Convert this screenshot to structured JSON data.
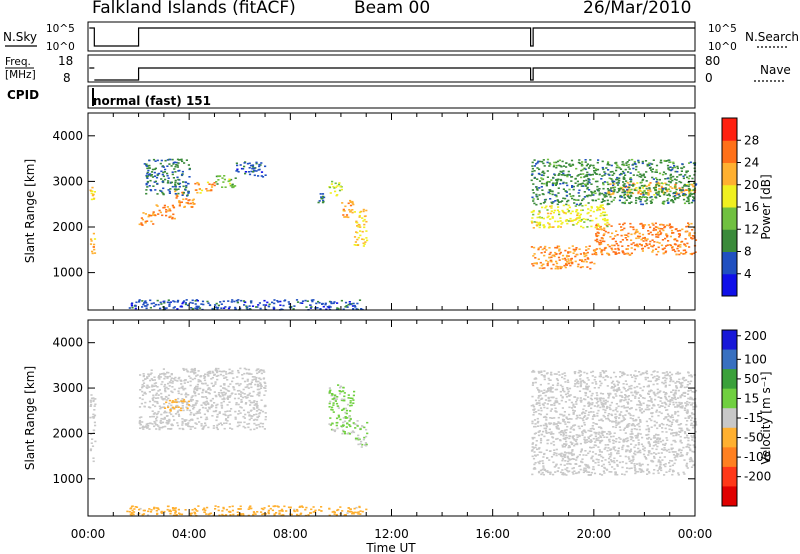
{
  "header": {
    "station": "Falkland Islands (fitACF)",
    "beam": "Beam 00",
    "date": "26/Mar/2010"
  },
  "top_panels": {
    "nsky_label": "N.Sky",
    "nsky_ticks": [
      "10^5",
      "10^0"
    ],
    "nsearch_label": "N.Search",
    "nsearch_ticks": [
      "10^5",
      "10^0"
    ],
    "freq_label_1": "Freq.",
    "freq_label_2": "[MHz]",
    "freq_ticks": [
      "18",
      "8"
    ],
    "nave_label": "Nave",
    "nave_ticks": [
      "80",
      "0"
    ],
    "cpid_label": "CPID",
    "cpid_value": "normal (fast) 151"
  },
  "axes": {
    "ylabel": "Slant Range [km]",
    "xlabel": "Time UT",
    "y_ticks": [
      "1000",
      "2000",
      "3000",
      "4000"
    ],
    "x_ticks": [
      "00:00",
      "04:00",
      "08:00",
      "12:00",
      "16:00",
      "20:00",
      "00:00"
    ]
  },
  "colorbars": {
    "power": {
      "label": "Power [dB]",
      "ticks": [
        "4",
        "8",
        "12",
        "16",
        "20",
        "24",
        "28"
      ],
      "colors": [
        "#1010e8",
        "#2050c0",
        "#3a8a3a",
        "#70c040",
        "#f0f020",
        "#ffb030",
        "#ff7018",
        "#ff2010"
      ]
    },
    "velocity": {
      "label": "Velocity [m s⁻¹]",
      "ticks": [
        "200",
        "100",
        "50",
        "15",
        "-15",
        "-50",
        "-100",
        "-200"
      ],
      "colors": [
        "#1818d8",
        "#3870c0",
        "#3aa03a",
        "#70d040",
        "#c8c8c8",
        "#ffb030",
        "#ff8020",
        "#ff3818",
        "#e00000"
      ]
    }
  },
  "chart_data": [
    {
      "type": "heatmap",
      "name_ref": "power",
      "xlabel": "Time UT",
      "ylabel": "Slant Range [km]",
      "xlim": [
        0,
        24
      ],
      "ylim": [
        180,
        4500
      ],
      "units": "dB",
      "clim": [
        0,
        32
      ],
      "cells": [
        {
          "t": [
            0.05,
            0.25
          ],
          "r": [
            1400,
            1900
          ],
          "v": 22
        },
        {
          "t": [
            0.05,
            0.25
          ],
          "r": [
            2600,
            2950
          ],
          "v": 20
        },
        {
          "t": [
            2.0,
            2.6
          ],
          "r": [
            2050,
            2350
          ],
          "v": 24
        },
        {
          "t": [
            2.6,
            3.4
          ],
          "r": [
            2200,
            2500
          ],
          "v": 25
        },
        {
          "t": [
            3.4,
            4.2
          ],
          "r": [
            2450,
            2800
          ],
          "v": 24
        },
        {
          "t": [
            4.2,
            5.0
          ],
          "r": [
            2750,
            3000
          ],
          "v": 22
        },
        {
          "t": [
            5.0,
            5.8
          ],
          "r": [
            2850,
            3150
          ],
          "v": 14
        },
        {
          "t": [
            5.8,
            7.0
          ],
          "r": [
            3100,
            3450
          ],
          "v": 6
        },
        {
          "t": [
            2.2,
            4.0
          ],
          "r": [
            2700,
            3500
          ],
          "v": 8
        },
        {
          "t": [
            9.0,
            9.5
          ],
          "r": [
            2550,
            2750
          ],
          "v": 8
        },
        {
          "t": [
            9.5,
            10.0
          ],
          "r": [
            2700,
            3050
          ],
          "v": 16
        },
        {
          "t": [
            10.0,
            10.5
          ],
          "r": [
            2200,
            2600
          ],
          "v": 22
        },
        {
          "t": [
            10.5,
            11.0
          ],
          "r": [
            1600,
            2400
          ],
          "v": 20
        },
        {
          "t": [
            1.5,
            11.0
          ],
          "r": [
            200,
            420
          ],
          "v": 6
        },
        {
          "t": [
            17.5,
            20.0
          ],
          "r": [
            1100,
            1600
          ],
          "v": 24
        },
        {
          "t": [
            20.0,
            24.0
          ],
          "r": [
            1400,
            2100
          ],
          "v": 25
        },
        {
          "t": [
            17.5,
            20.5
          ],
          "r": [
            2000,
            2500
          ],
          "v": 18
        },
        {
          "t": [
            20.5,
            24.0
          ],
          "r": [
            2700,
            3000
          ],
          "v": 22
        },
        {
          "t": [
            17.5,
            24.0
          ],
          "r": [
            2500,
            3500
          ],
          "v": 10
        }
      ]
    },
    {
      "type": "heatmap",
      "name_ref": "velocity",
      "xlabel": "Time UT",
      "ylabel": "Slant Range [km]",
      "xlim": [
        0,
        24
      ],
      "ylim": [
        180,
        4500
      ],
      "units": "m s-1",
      "clim": [
        -200,
        200
      ],
      "cells": [
        {
          "t": [
            0.05,
            0.25
          ],
          "r": [
            1400,
            2900
          ],
          "v": 0
        },
        {
          "t": [
            2.0,
            7.0
          ],
          "r": [
            2100,
            3450
          ],
          "v": 0
        },
        {
          "t": [
            3.0,
            4.0
          ],
          "r": [
            2500,
            2800
          ],
          "v": -30
        },
        {
          "t": [
            9.5,
            10.5
          ],
          "r": [
            2000,
            3100
          ],
          "v": 30
        },
        {
          "t": [
            10.5,
            11.0
          ],
          "r": [
            1700,
            2300
          ],
          "v": 20
        },
        {
          "t": [
            1.5,
            11.0
          ],
          "r": [
            200,
            420
          ],
          "v": -40
        },
        {
          "t": [
            17.5,
            24.0
          ],
          "r": [
            1100,
            2100
          ],
          "v": 0
        },
        {
          "t": [
            17.5,
            24.0
          ],
          "r": [
            2100,
            3400
          ],
          "v": 0
        }
      ]
    }
  ]
}
